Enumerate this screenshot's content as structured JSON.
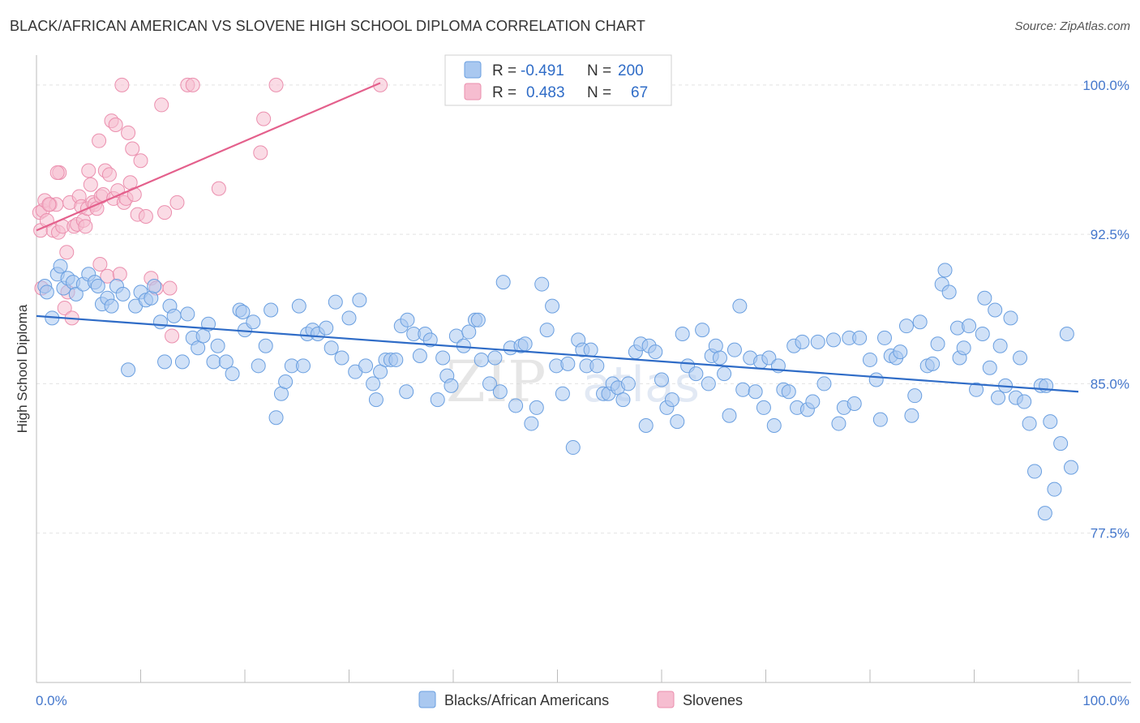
{
  "header": {
    "title": "BLACK/AFRICAN AMERICAN VS SLOVENE HIGH SCHOOL DIPLOMA CORRELATION CHART",
    "source": "Source: ZipAtlas.com"
  },
  "watermark": {
    "zip": "ZIP",
    "atlas": "atlas"
  },
  "colors": {
    "blue_fill": "#a9c8f0",
    "blue_stroke": "#6a9fe0",
    "blue_line": "#2f6cc7",
    "pink_fill": "#f6bdd0",
    "pink_stroke": "#eb8fae",
    "pink_line": "#e4608c",
    "axis_text": "#4477cc",
    "grid": "#e3e3e3"
  },
  "legend": {
    "row1": {
      "r_label": "R =",
      "r_value": "-0.491",
      "n_label": "N =",
      "n_value": "200"
    },
    "row2": {
      "r_label": "R =",
      "r_value": "0.483",
      "n_label": "N =",
      "n_value": "67"
    }
  },
  "bottom_legend": [
    "Blacks/African Americans",
    "Slovenes"
  ],
  "chart_data": {
    "type": "scatter",
    "xlabel": "",
    "ylabel": "High School Diploma",
    "xlim": [
      0,
      100
    ],
    "ylim": [
      70,
      101.5
    ],
    "x_tick_labels": [
      "0.0%",
      "100.0%"
    ],
    "y_ticks": [
      77.5,
      85.0,
      92.5,
      100.0
    ],
    "y_tick_labels": [
      "77.5%",
      "85.0%",
      "92.5%",
      "100.0%"
    ],
    "grid": true,
    "legend_position": "top-center",
    "series": [
      {
        "name": "Blacks/African Americans",
        "color": "#a9c8f0",
        "r": -0.491,
        "n": 200,
        "trend": {
          "x": [
            0,
            100
          ],
          "y": [
            88.4,
            84.6
          ]
        },
        "points": [
          [
            0.8,
            89.9
          ],
          [
            1.0,
            89.6
          ],
          [
            1.5,
            88.3
          ],
          [
            2.0,
            90.5
          ],
          [
            2.3,
            90.9
          ],
          [
            2.6,
            89.8
          ],
          [
            3.0,
            90.3
          ],
          [
            3.5,
            90.1
          ],
          [
            3.8,
            89.5
          ],
          [
            4.5,
            90.0
          ],
          [
            5.0,
            90.5
          ],
          [
            5.6,
            90.1
          ],
          [
            5.9,
            89.9
          ],
          [
            6.3,
            89.0
          ],
          [
            6.8,
            89.3
          ],
          [
            7.2,
            88.9
          ],
          [
            7.7,
            89.9
          ],
          [
            8.3,
            89.5
          ],
          [
            8.8,
            85.7
          ],
          [
            9.5,
            88.9
          ],
          [
            10.0,
            89.6
          ],
          [
            10.5,
            89.2
          ],
          [
            11.0,
            89.3
          ],
          [
            11.3,
            89.9
          ],
          [
            11.9,
            88.1
          ],
          [
            12.3,
            86.1
          ],
          [
            12.8,
            88.9
          ],
          [
            13.2,
            88.4
          ],
          [
            14.0,
            86.1
          ],
          [
            14.5,
            88.5
          ],
          [
            15.0,
            87.3
          ],
          [
            15.5,
            86.8
          ],
          [
            16.0,
            87.4
          ],
          [
            16.5,
            88.0
          ],
          [
            17.0,
            86.1
          ],
          [
            17.4,
            86.9
          ],
          [
            18.2,
            86.1
          ],
          [
            18.8,
            85.5
          ],
          [
            19.5,
            88.7
          ],
          [
            19.8,
            88.6
          ],
          [
            20.0,
            87.7
          ],
          [
            20.8,
            88.1
          ],
          [
            21.3,
            85.9
          ],
          [
            22.0,
            86.9
          ],
          [
            22.5,
            88.7
          ],
          [
            23.0,
            83.3
          ],
          [
            23.5,
            84.5
          ],
          [
            23.9,
            85.1
          ],
          [
            24.5,
            85.9
          ],
          [
            25.2,
            88.9
          ],
          [
            25.6,
            85.9
          ],
          [
            26.0,
            87.5
          ],
          [
            26.5,
            87.7
          ],
          [
            27.0,
            87.5
          ],
          [
            27.8,
            87.8
          ],
          [
            28.3,
            86.8
          ],
          [
            28.7,
            89.1
          ],
          [
            29.3,
            86.3
          ],
          [
            30.0,
            88.3
          ],
          [
            30.6,
            85.6
          ],
          [
            31.0,
            89.2
          ],
          [
            31.6,
            85.9
          ],
          [
            32.3,
            85.0
          ],
          [
            32.6,
            84.2
          ],
          [
            33.0,
            85.6
          ],
          [
            33.5,
            86.2
          ],
          [
            34.0,
            86.2
          ],
          [
            34.5,
            86.2
          ],
          [
            35.0,
            87.9
          ],
          [
            35.5,
            84.6
          ],
          [
            35.6,
            88.2
          ],
          [
            36.2,
            87.5
          ],
          [
            36.8,
            86.4
          ],
          [
            37.3,
            87.5
          ],
          [
            37.8,
            87.2
          ],
          [
            38.5,
            84.2
          ],
          [
            39.0,
            86.3
          ],
          [
            39.4,
            85.4
          ],
          [
            39.8,
            84.9
          ],
          [
            40.3,
            87.4
          ],
          [
            41.0,
            86.9
          ],
          [
            41.5,
            87.6
          ],
          [
            42.1,
            88.2
          ],
          [
            42.4,
            88.2
          ],
          [
            42.7,
            86.2
          ],
          [
            43.5,
            85.0
          ],
          [
            44.0,
            86.3
          ],
          [
            44.5,
            84.6
          ],
          [
            44.8,
            90.1
          ],
          [
            45.5,
            86.8
          ],
          [
            46.0,
            83.9
          ],
          [
            46.5,
            86.9
          ],
          [
            46.9,
            87.0
          ],
          [
            47.5,
            83.0
          ],
          [
            48.0,
            83.8
          ],
          [
            48.5,
            90.0
          ],
          [
            49.0,
            87.7
          ],
          [
            49.5,
            88.9
          ],
          [
            49.9,
            85.9
          ],
          [
            50.5,
            84.5
          ],
          [
            51.0,
            86.0
          ],
          [
            51.5,
            81.8
          ],
          [
            52.0,
            87.2
          ],
          [
            52.4,
            86.7
          ],
          [
            52.8,
            85.9
          ],
          [
            53.2,
            86.7
          ],
          [
            53.8,
            85.9
          ],
          [
            54.4,
            84.5
          ],
          [
            54.9,
            84.5
          ],
          [
            55.3,
            85.0
          ],
          [
            55.8,
            84.8
          ],
          [
            56.3,
            84.2
          ],
          [
            56.8,
            85.0
          ],
          [
            57.5,
            86.6
          ],
          [
            58.0,
            87.0
          ],
          [
            58.5,
            82.9
          ],
          [
            58.8,
            86.9
          ],
          [
            59.4,
            86.6
          ],
          [
            60.0,
            85.2
          ],
          [
            60.5,
            83.8
          ],
          [
            61.0,
            84.2
          ],
          [
            61.5,
            83.1
          ],
          [
            62.0,
            87.5
          ],
          [
            62.5,
            85.9
          ],
          [
            63.3,
            85.5
          ],
          [
            63.9,
            87.7
          ],
          [
            64.5,
            85.0
          ],
          [
            64.8,
            86.4
          ],
          [
            65.2,
            86.9
          ],
          [
            65.6,
            86.3
          ],
          [
            66.0,
            85.5
          ],
          [
            66.5,
            83.4
          ],
          [
            67.0,
            86.7
          ],
          [
            67.5,
            88.9
          ],
          [
            67.8,
            84.7
          ],
          [
            68.5,
            86.3
          ],
          [
            69.0,
            84.6
          ],
          [
            69.5,
            86.1
          ],
          [
            69.8,
            83.8
          ],
          [
            70.3,
            86.3
          ],
          [
            70.8,
            82.9
          ],
          [
            71.2,
            85.9
          ],
          [
            71.7,
            84.7
          ],
          [
            72.2,
            84.6
          ],
          [
            72.7,
            86.9
          ],
          [
            73.0,
            83.8
          ],
          [
            73.5,
            87.1
          ],
          [
            74.0,
            83.7
          ],
          [
            74.5,
            84.1
          ],
          [
            75.0,
            87.1
          ],
          [
            75.6,
            85.0
          ],
          [
            76.5,
            87.2
          ],
          [
            77.0,
            83.0
          ],
          [
            77.5,
            83.8
          ],
          [
            78.0,
            87.3
          ],
          [
            78.5,
            84.0
          ],
          [
            79.0,
            87.3
          ],
          [
            80.0,
            86.2
          ],
          [
            80.6,
            85.2
          ],
          [
            81.0,
            83.2
          ],
          [
            81.4,
            87.3
          ],
          [
            82.0,
            86.4
          ],
          [
            82.5,
            86.3
          ],
          [
            82.9,
            86.6
          ],
          [
            83.5,
            87.9
          ],
          [
            84.0,
            83.4
          ],
          [
            84.3,
            84.4
          ],
          [
            84.8,
            88.1
          ],
          [
            85.5,
            85.9
          ],
          [
            86.0,
            86.0
          ],
          [
            86.5,
            87.0
          ],
          [
            86.9,
            90.0
          ],
          [
            87.2,
            90.7
          ],
          [
            87.6,
            89.6
          ],
          [
            88.4,
            87.8
          ],
          [
            88.6,
            86.3
          ],
          [
            89.0,
            86.8
          ],
          [
            89.5,
            87.9
          ],
          [
            90.2,
            84.7
          ],
          [
            90.8,
            87.5
          ],
          [
            91.0,
            89.3
          ],
          [
            91.5,
            85.8
          ],
          [
            92.0,
            88.7
          ],
          [
            92.5,
            86.9
          ],
          [
            93.0,
            84.9
          ],
          [
            93.5,
            88.3
          ],
          [
            94.0,
            84.3
          ],
          [
            94.4,
            86.3
          ],
          [
            94.8,
            84.1
          ],
          [
            95.3,
            83.0
          ],
          [
            95.8,
            80.6
          ],
          [
            96.4,
            84.9
          ],
          [
            96.8,
            78.5
          ],
          [
            97.3,
            83.1
          ],
          [
            97.7,
            79.7
          ],
          [
            98.3,
            82.0
          ],
          [
            99.3,
            80.8
          ],
          [
            96.9,
            84.9
          ],
          [
            98.9,
            87.5
          ],
          [
            92.3,
            84.3
          ]
        ]
      },
      {
        "name": "Slovenes",
        "color": "#f6bdd0",
        "r": 0.483,
        "n": 67,
        "trend": {
          "x": [
            0,
            33
          ],
          "y": [
            92.7,
            100.1
          ]
        },
        "points": [
          [
            0.3,
            93.6
          ],
          [
            0.4,
            92.7
          ],
          [
            0.6,
            93.7
          ],
          [
            0.8,
            94.2
          ],
          [
            1.0,
            93.2
          ],
          [
            1.3,
            94.0
          ],
          [
            1.6,
            92.7
          ],
          [
            1.9,
            94.0
          ],
          [
            2.1,
            92.6
          ],
          [
            2.2,
            95.6
          ],
          [
            2.5,
            92.9
          ],
          [
            2.7,
            88.8
          ],
          [
            2.9,
            91.6
          ],
          [
            3.2,
            94.1
          ],
          [
            3.4,
            88.3
          ],
          [
            3.6,
            92.9
          ],
          [
            3.9,
            93.0
          ],
          [
            4.1,
            94.4
          ],
          [
            4.3,
            93.9
          ],
          [
            4.5,
            93.2
          ],
          [
            4.7,
            92.9
          ],
          [
            4.9,
            93.8
          ],
          [
            5.0,
            95.7
          ],
          [
            5.2,
            95.0
          ],
          [
            5.4,
            94.1
          ],
          [
            5.6,
            94.0
          ],
          [
            5.8,
            93.8
          ],
          [
            6.0,
            97.2
          ],
          [
            6.1,
            91.0
          ],
          [
            6.2,
            94.4
          ],
          [
            6.4,
            94.5
          ],
          [
            6.6,
            95.7
          ],
          [
            6.8,
            90.4
          ],
          [
            7.0,
            95.5
          ],
          [
            7.2,
            98.2
          ],
          [
            7.4,
            94.3
          ],
          [
            7.6,
            98.0
          ],
          [
            7.8,
            94.7
          ],
          [
            8.0,
            90.5
          ],
          [
            8.2,
            100.0
          ],
          [
            8.4,
            94.1
          ],
          [
            8.6,
            94.3
          ],
          [
            8.8,
            97.6
          ],
          [
            9.0,
            95.1
          ],
          [
            9.2,
            96.8
          ],
          [
            9.4,
            94.5
          ],
          [
            9.7,
            93.5
          ],
          [
            10.0,
            96.2
          ],
          [
            10.5,
            93.4
          ],
          [
            11.0,
            90.3
          ],
          [
            11.5,
            89.8
          ],
          [
            12.0,
            99.0
          ],
          [
            12.3,
            93.6
          ],
          [
            12.8,
            89.8
          ],
          [
            13.5,
            94.1
          ],
          [
            14.5,
            100.0
          ],
          [
            15.0,
            100.0
          ],
          [
            17.5,
            94.8
          ],
          [
            21.5,
            96.6
          ],
          [
            21.8,
            98.3
          ],
          [
            23.0,
            100.0
          ],
          [
            33.0,
            100.0
          ],
          [
            13.0,
            87.4
          ],
          [
            1.2,
            94.0
          ],
          [
            3.0,
            89.6
          ],
          [
            0.5,
            89.8
          ],
          [
            2.0,
            95.6
          ]
        ]
      }
    ]
  }
}
